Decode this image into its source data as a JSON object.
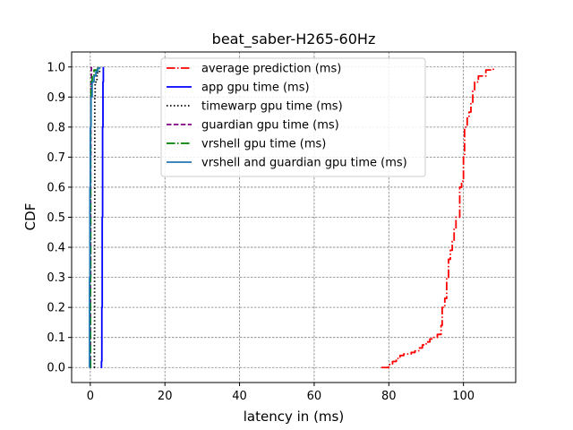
{
  "chart_data": {
    "type": "line",
    "title": "beat_saber-H265-60Hz",
    "xlabel": "latency in (ms)",
    "ylabel": "CDF",
    "xlim": [
      -5,
      114
    ],
    "ylim": [
      -0.05,
      1.05
    ],
    "xticks": [
      "0",
      "20",
      "40",
      "60",
      "80",
      "100"
    ],
    "yticks": [
      "0.0",
      "0.1",
      "0.2",
      "0.3",
      "0.4",
      "0.5",
      "0.6",
      "0.7",
      "0.8",
      "0.9",
      "1.0"
    ],
    "grid": true,
    "legend_position": "top-center",
    "series": [
      {
        "name": "average prediction (ms)",
        "color": "#ff0000",
        "linestyle": "dashdot",
        "x": [
          78,
          80,
          81,
          82,
          83,
          84,
          86,
          87,
          88,
          89,
          90,
          91,
          92,
          93,
          94,
          94.3,
          95,
          95.5,
          96,
          96.5,
          97,
          97.5,
          98,
          98.5,
          99,
          99.5,
          100,
          100.3,
          101,
          101.5,
          102,
          102.5,
          103,
          104,
          106,
          108
        ],
        "y": [
          0.0,
          0.01,
          0.02,
          0.03,
          0.04,
          0.045,
          0.05,
          0.055,
          0.065,
          0.075,
          0.085,
          0.095,
          0.1,
          0.11,
          0.14,
          0.2,
          0.23,
          0.3,
          0.36,
          0.39,
          0.42,
          0.46,
          0.5,
          0.5,
          0.6,
          0.62,
          0.7,
          0.8,
          0.83,
          0.85,
          0.88,
          0.92,
          0.95,
          0.97,
          0.99,
          1.0
        ]
      },
      {
        "name": "app gpu time (ms)",
        "color": "#0000ff",
        "linestyle": "solid",
        "x": [
          2.8,
          3.0,
          3.1,
          3.2,
          3.3,
          3.4,
          3.5
        ],
        "y": [
          0.0,
          0.02,
          0.2,
          0.5,
          0.8,
          0.95,
          1.0
        ]
      },
      {
        "name": "timewarp gpu time (ms)",
        "color": "#000000",
        "linestyle": "dotted",
        "x": [
          1.0,
          1.1,
          1.15,
          1.2,
          1.3,
          1.8,
          2.5
        ],
        "y": [
          0.0,
          0.1,
          0.5,
          0.9,
          0.95,
          0.98,
          1.0
        ]
      },
      {
        "name": "guardian gpu time (ms)",
        "color": "#800080",
        "linestyle": "dashed",
        "x": [
          0.0,
          0.05,
          0.1,
          0.15,
          0.2,
          0.3
        ],
        "y": [
          0.0,
          0.3,
          0.7,
          0.9,
          0.95,
          1.0
        ]
      },
      {
        "name": "vrshell gpu time (ms)",
        "color": "#008000",
        "linestyle": "dashdot",
        "x": [
          0.0,
          0.05,
          0.1,
          0.2,
          0.5,
          1.0,
          2.0
        ],
        "y": [
          0.0,
          0.3,
          0.8,
          0.95,
          0.97,
          0.99,
          1.0
        ]
      },
      {
        "name": "vrshell and guardian gpu time (ms)",
        "color": "#1f77b4",
        "linestyle": "solid",
        "x": [
          -0.3,
          -0.2,
          -0.1,
          0.0,
          0.2,
          0.5,
          1.0,
          1.5,
          2.0,
          2.5
        ],
        "y": [
          0.0,
          0.3,
          0.6,
          0.8,
          0.9,
          0.95,
          0.97,
          0.985,
          0.995,
          1.0
        ]
      }
    ]
  }
}
